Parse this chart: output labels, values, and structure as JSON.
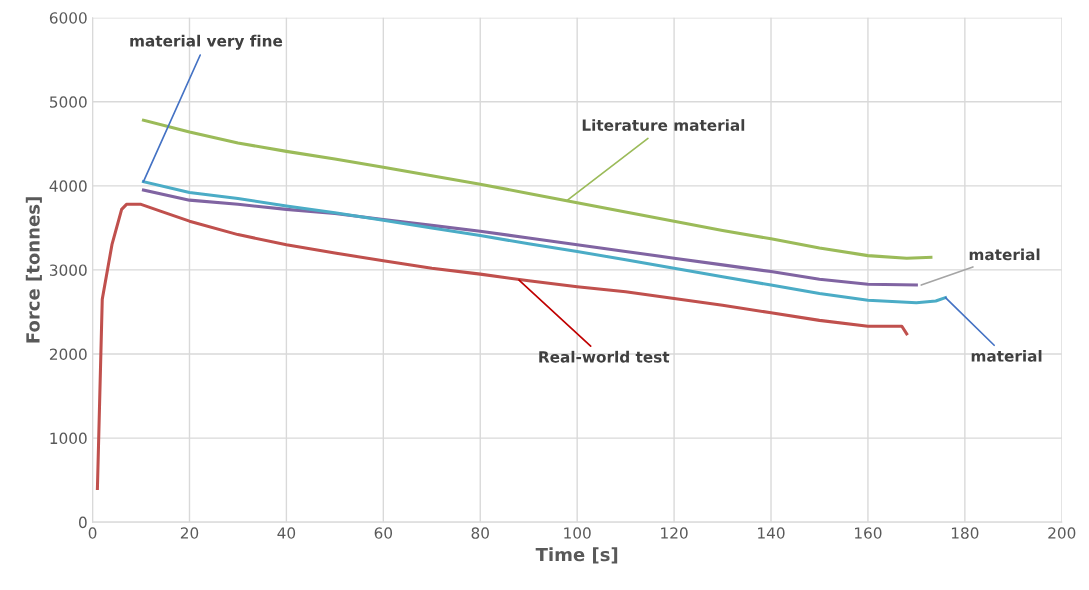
{
  "chart_data": {
    "type": "line",
    "xlabel": "Time [s]",
    "ylabel": "Force [tonnes]",
    "xlim": [
      0,
      200
    ],
    "xticks": [
      0,
      20,
      40,
      60,
      80,
      100,
      120,
      140,
      160,
      180,
      200
    ],
    "ylim": [
      0,
      6000
    ],
    "yticks": [
      0,
      1000,
      2000,
      3000,
      4000,
      5000,
      6000
    ],
    "grid": true,
    "marker": "none",
    "line_style": "solid",
    "series": [
      {
        "color": "#9bbb59",
        "x": [
          10.5,
          20,
          30,
          40,
          50,
          60,
          70,
          80,
          90,
          100,
          110,
          120,
          130,
          140,
          150,
          160,
          168,
          173
        ],
        "values": [
          4780,
          4640,
          4510,
          4410,
          4320,
          4220,
          4120,
          4020,
          3910,
          3800,
          3690,
          3580,
          3470,
          3370,
          3260,
          3170,
          3140,
          3150
        ]
      },
      {
        "color": "#8064a2",
        "x": [
          10.5,
          20,
          30,
          40,
          50,
          60,
          70,
          80,
          90,
          100,
          110,
          120,
          130,
          140,
          150,
          160,
          170
        ],
        "values": [
          3950,
          3830,
          3780,
          3720,
          3670,
          3600,
          3530,
          3460,
          3380,
          3300,
          3220,
          3140,
          3060,
          2980,
          2890,
          2830,
          2820
        ]
      },
      {
        "color": "#4bacc6",
        "x": [
          10.5,
          20,
          30,
          40,
          50,
          60,
          70,
          80,
          90,
          100,
          110,
          120,
          130,
          140,
          150,
          160,
          170,
          174,
          176
        ],
        "values": [
          4050,
          3920,
          3850,
          3760,
          3680,
          3590,
          3500,
          3410,
          3310,
          3220,
          3120,
          3020,
          2920,
          2820,
          2720,
          2640,
          2610,
          2630,
          2670
        ]
      },
      {
        "color": "#c0504d",
        "x": [
          1,
          2,
          4,
          6,
          7,
          10,
          14,
          20,
          30,
          40,
          50,
          60,
          70,
          80,
          90,
          100,
          110,
          120,
          130,
          140,
          150,
          160,
          167,
          168
        ],
        "values": [
          400,
          2650,
          3300,
          3720,
          3780,
          3780,
          3700,
          3580,
          3420,
          3300,
          3200,
          3110,
          3020,
          2950,
          2870,
          2800,
          2740,
          2660,
          2580,
          2490,
          2400,
          2330,
          2330,
          2240
        ]
      }
    ],
    "annotations": [
      {
        "text": "material very fine",
        "x": 10.5,
        "y": 4050
      },
      {
        "text": "Literature material",
        "x": 98,
        "y": 3830
      },
      {
        "text": "material",
        "x": 171,
        "y": 2820
      },
      {
        "text": "material",
        "x": 176,
        "y": 2670
      },
      {
        "text": "Real-world test",
        "x": 88,
        "y": 2880
      }
    ]
  }
}
